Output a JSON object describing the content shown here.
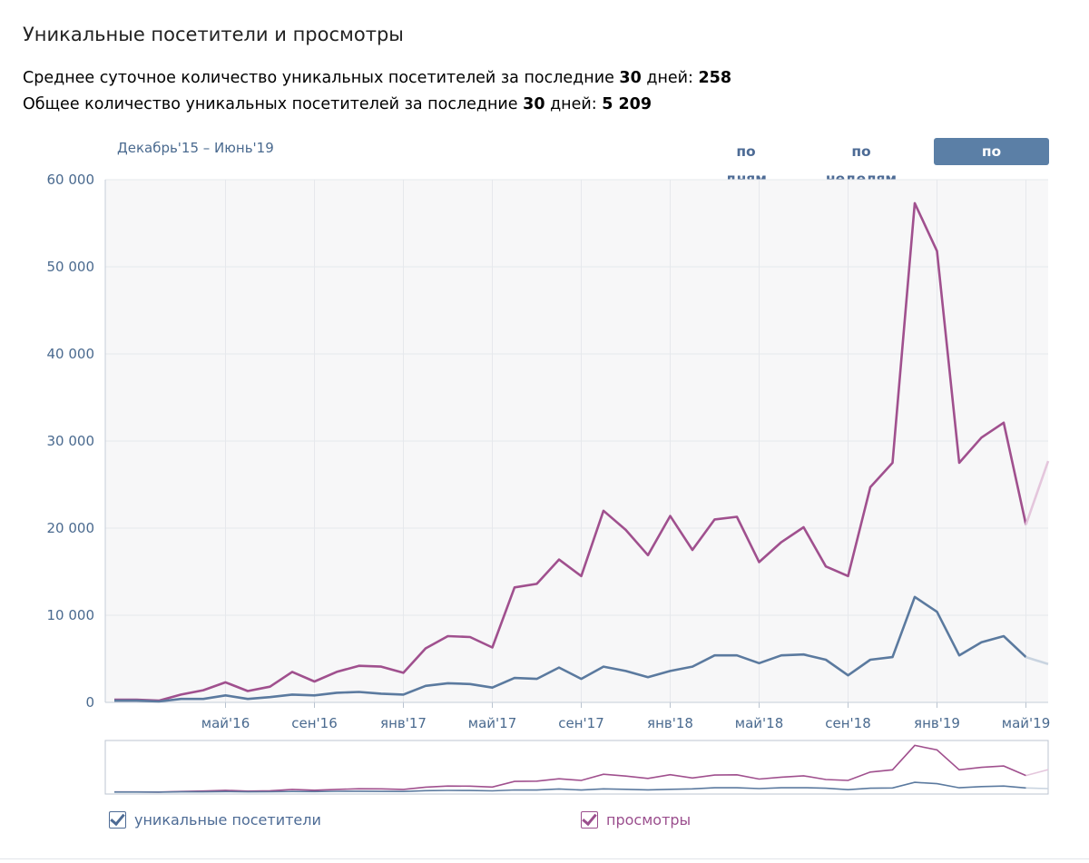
{
  "header": {
    "title": "Уникальные посетители и просмотры",
    "stat1_prefix": "Среднее суточное количество уникальных посетителей за последние ",
    "stat1_days": "30",
    "stat1_mid": " дней: ",
    "stat1_value": "258",
    "stat2_prefix": "Общее количество уникальных посетителей за последние ",
    "stat2_days": "30",
    "stat2_mid": " дней: ",
    "stat2_value": "5 209"
  },
  "period_label": "Декабрь'15 – Июнь'19",
  "tabs": [
    {
      "label": "по дням",
      "active": false
    },
    {
      "label": "по неделям",
      "active": false
    },
    {
      "label": "по месяцам",
      "active": true
    }
  ],
  "legend": {
    "uniq_label": "уникальные посетители",
    "views_label": "просмотры"
  },
  "colors": {
    "uniq": "#5b7a9f",
    "views": "#a0508e",
    "uniq_faded": "#c9d4e0",
    "views_faded": "#e4c6dc",
    "grid": "#e6e8ec",
    "plot_bg": "#f7f7f8",
    "axis_text": "#4a6a8f",
    "active_tab": "#5b7fa6"
  },
  "chart_data": {
    "type": "line",
    "x": [
      "дек'15",
      "янв'16",
      "фев'16",
      "мар'16",
      "апр'16",
      "май'16",
      "июн'16",
      "июл'16",
      "авг'16",
      "сен'16",
      "окт'16",
      "ноя'16",
      "дек'16",
      "янв'17",
      "фев'17",
      "мар'17",
      "апр'17",
      "май'17",
      "июн'17",
      "июл'17",
      "авг'17",
      "сен'17",
      "окт'17",
      "ноя'17",
      "дек'17",
      "янв'18",
      "фев'18",
      "мар'18",
      "апр'18",
      "май'18",
      "июн'18",
      "июл'18",
      "авг'18",
      "сен'18",
      "окт'18",
      "ноя'18",
      "дек'18",
      "янв'19",
      "фев'19",
      "мар'19",
      "апр'19",
      "май'19",
      "июн'19"
    ],
    "xtick_labels": [
      "май'16",
      "сен'16",
      "янв'17",
      "май'17",
      "сен'17",
      "янв'18",
      "май'18",
      "сен'18",
      "янв'19",
      "май'19"
    ],
    "xtick_index": [
      5,
      9,
      13,
      17,
      21,
      25,
      29,
      33,
      37,
      41
    ],
    "ylim": [
      0,
      60000
    ],
    "yticks": [
      0,
      10000,
      20000,
      30000,
      40000,
      50000,
      60000
    ],
    "ytick_labels": [
      "0",
      "10 000",
      "20 000",
      "30 000",
      "40 000",
      "50 000",
      "60 000"
    ],
    "grid": true,
    "partial_from_index": 41,
    "series": [
      {
        "name": "уникальные посетители",
        "values": [
          200,
          200,
          100,
          400,
          400,
          800,
          400,
          600,
          900,
          800,
          1100,
          1200,
          1000,
          900,
          1900,
          2200,
          2100,
          1700,
          2800,
          2700,
          4000,
          2700,
          4100,
          3600,
          2900,
          3600,
          4100,
          5400,
          5400,
          4500,
          5400,
          5500,
          4900,
          3100,
          4900,
          5200,
          12100,
          10400,
          5400,
          6900,
          7600,
          5200,
          4400
        ]
      },
      {
        "name": "просмотры",
        "values": [
          300,
          300,
          200,
          900,
          1400,
          2300,
          1300,
          1800,
          3500,
          2400,
          3500,
          4200,
          4100,
          3400,
          6200,
          7600,
          7500,
          6300,
          13200,
          13600,
          16400,
          14500,
          22000,
          19800,
          16900,
          21400,
          17500,
          21000,
          21300,
          16100,
          18400,
          20100,
          15600,
          14500,
          24700,
          27500,
          57300,
          51800,
          27500,
          30400,
          32100,
          20400,
          27700
        ]
      }
    ]
  }
}
